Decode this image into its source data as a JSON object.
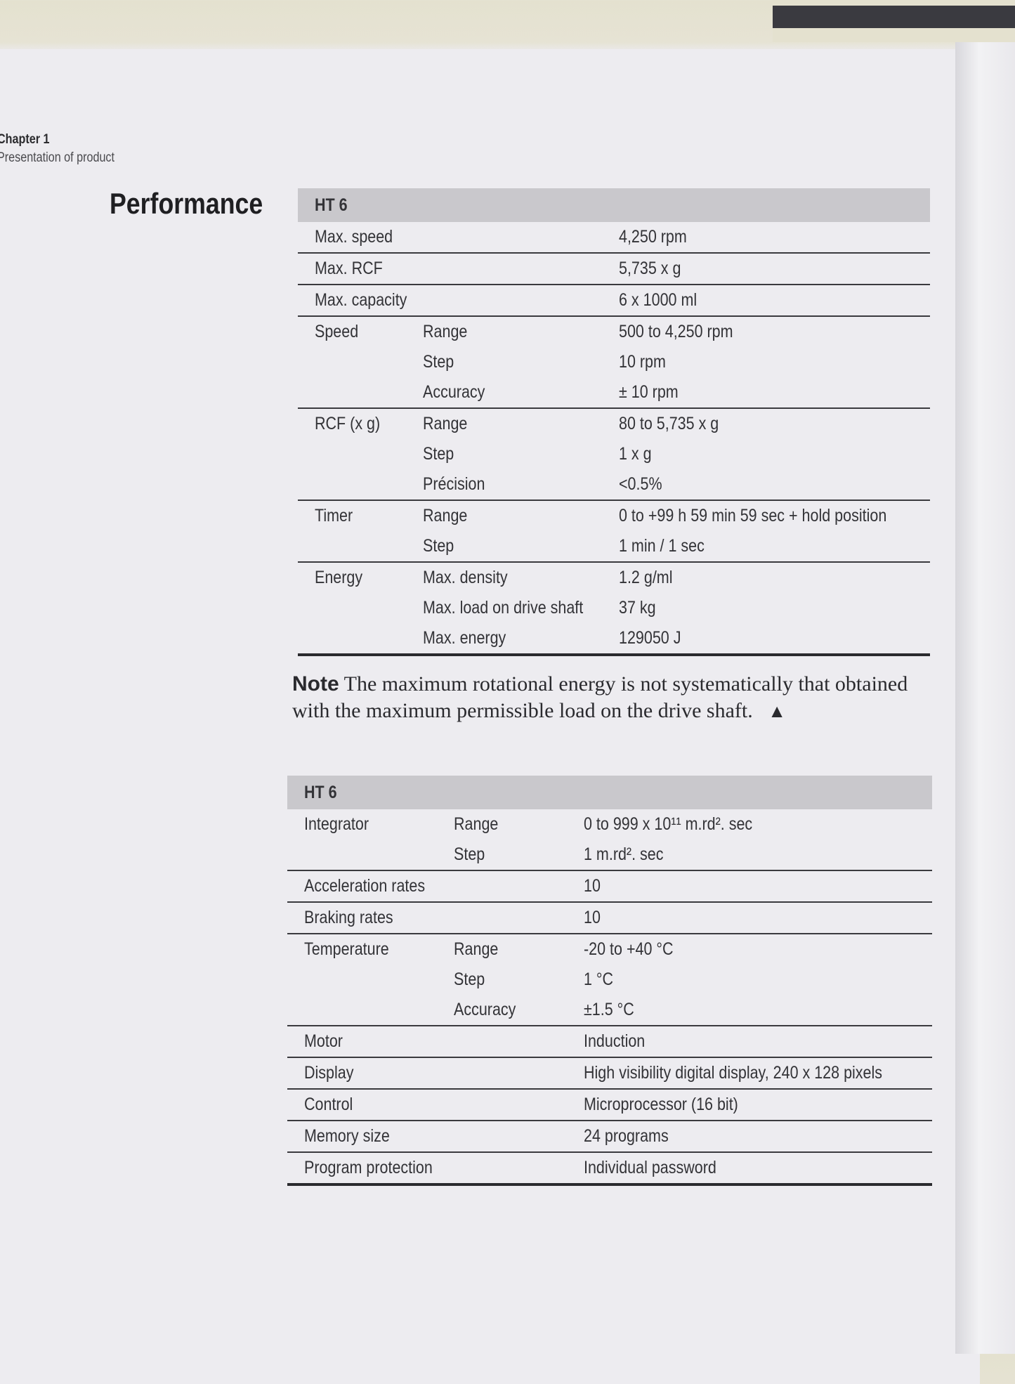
{
  "header": {
    "chapter": "Chapter 1",
    "subtitle": "Presentation of product"
  },
  "section_title": "Performance",
  "table1": {
    "title": "HT 6",
    "groups": [
      {
        "label": "Max. speed",
        "rows": [
          {
            "sub": "",
            "value": "4,250 rpm"
          }
        ]
      },
      {
        "label": "Max. RCF",
        "rows": [
          {
            "sub": "",
            "value": "5,735 x g"
          }
        ]
      },
      {
        "label": "Max. capacity",
        "rows": [
          {
            "sub": "",
            "value": "6 x 1000 ml"
          }
        ]
      },
      {
        "label": "Speed",
        "rows": [
          {
            "sub": "Range",
            "value": "500 to 4,250 rpm"
          },
          {
            "sub": "Step",
            "value": "10 rpm"
          },
          {
            "sub": "Accuracy",
            "value": "± 10 rpm"
          }
        ]
      },
      {
        "label": "RCF (x g)",
        "rows": [
          {
            "sub": "Range",
            "value": "80 to 5,735 x g"
          },
          {
            "sub": "Step",
            "value": "1 x g"
          },
          {
            "sub": "Précision",
            "value": "<0.5%"
          }
        ]
      },
      {
        "label": "Timer",
        "rows": [
          {
            "sub": "Range",
            "value": "0 to +99 h 59 min 59 sec + hold position"
          },
          {
            "sub": "Step",
            "value": "1 min / 1 sec"
          }
        ]
      },
      {
        "label": "Energy",
        "rows": [
          {
            "sub": "Max. density",
            "value": "1.2 g/ml"
          },
          {
            "sub": "Max. load on drive shaft",
            "value": "37 kg"
          },
          {
            "sub": "Max. energy",
            "value": "129050 J"
          }
        ]
      }
    ]
  },
  "note": {
    "label": "Note",
    "text": "The maximum rotational energy is not systematically that obtained with the maximum permissible load on the drive shaft.",
    "end_mark": "▲"
  },
  "table2": {
    "title": "HT 6",
    "groups": [
      {
        "label": "Integrator",
        "rows": [
          {
            "sub": "Range",
            "value": "0 to 999 x 10¹¹ m.rd². sec"
          },
          {
            "sub": "Step",
            "value": "1 m.rd². sec"
          }
        ]
      },
      {
        "label": "Acceleration rates",
        "rows": [
          {
            "sub": "",
            "value": "10"
          }
        ]
      },
      {
        "label": "Braking rates",
        "rows": [
          {
            "sub": "",
            "value": "10"
          }
        ]
      },
      {
        "label": "Temperature",
        "rows": [
          {
            "sub": "Range",
            "value": "-20 to +40 °C"
          },
          {
            "sub": "Step",
            "value": "1 °C"
          },
          {
            "sub": "Accuracy",
            "value": "±1.5 °C"
          }
        ]
      },
      {
        "label": "Motor",
        "rows": [
          {
            "sub": "",
            "value": "Induction"
          }
        ]
      },
      {
        "label": "Display",
        "rows": [
          {
            "sub": "",
            "value": "High visibility digital display, 240 x 128 pixels"
          }
        ]
      },
      {
        "label": "Control",
        "rows": [
          {
            "sub": "",
            "value": "Microprocessor (16 bit)"
          }
        ]
      },
      {
        "label": "Memory size",
        "rows": [
          {
            "sub": "",
            "value": "24 programs"
          }
        ]
      },
      {
        "label": "Program protection",
        "rows": [
          {
            "sub": "",
            "value": "Individual password"
          }
        ]
      }
    ]
  }
}
